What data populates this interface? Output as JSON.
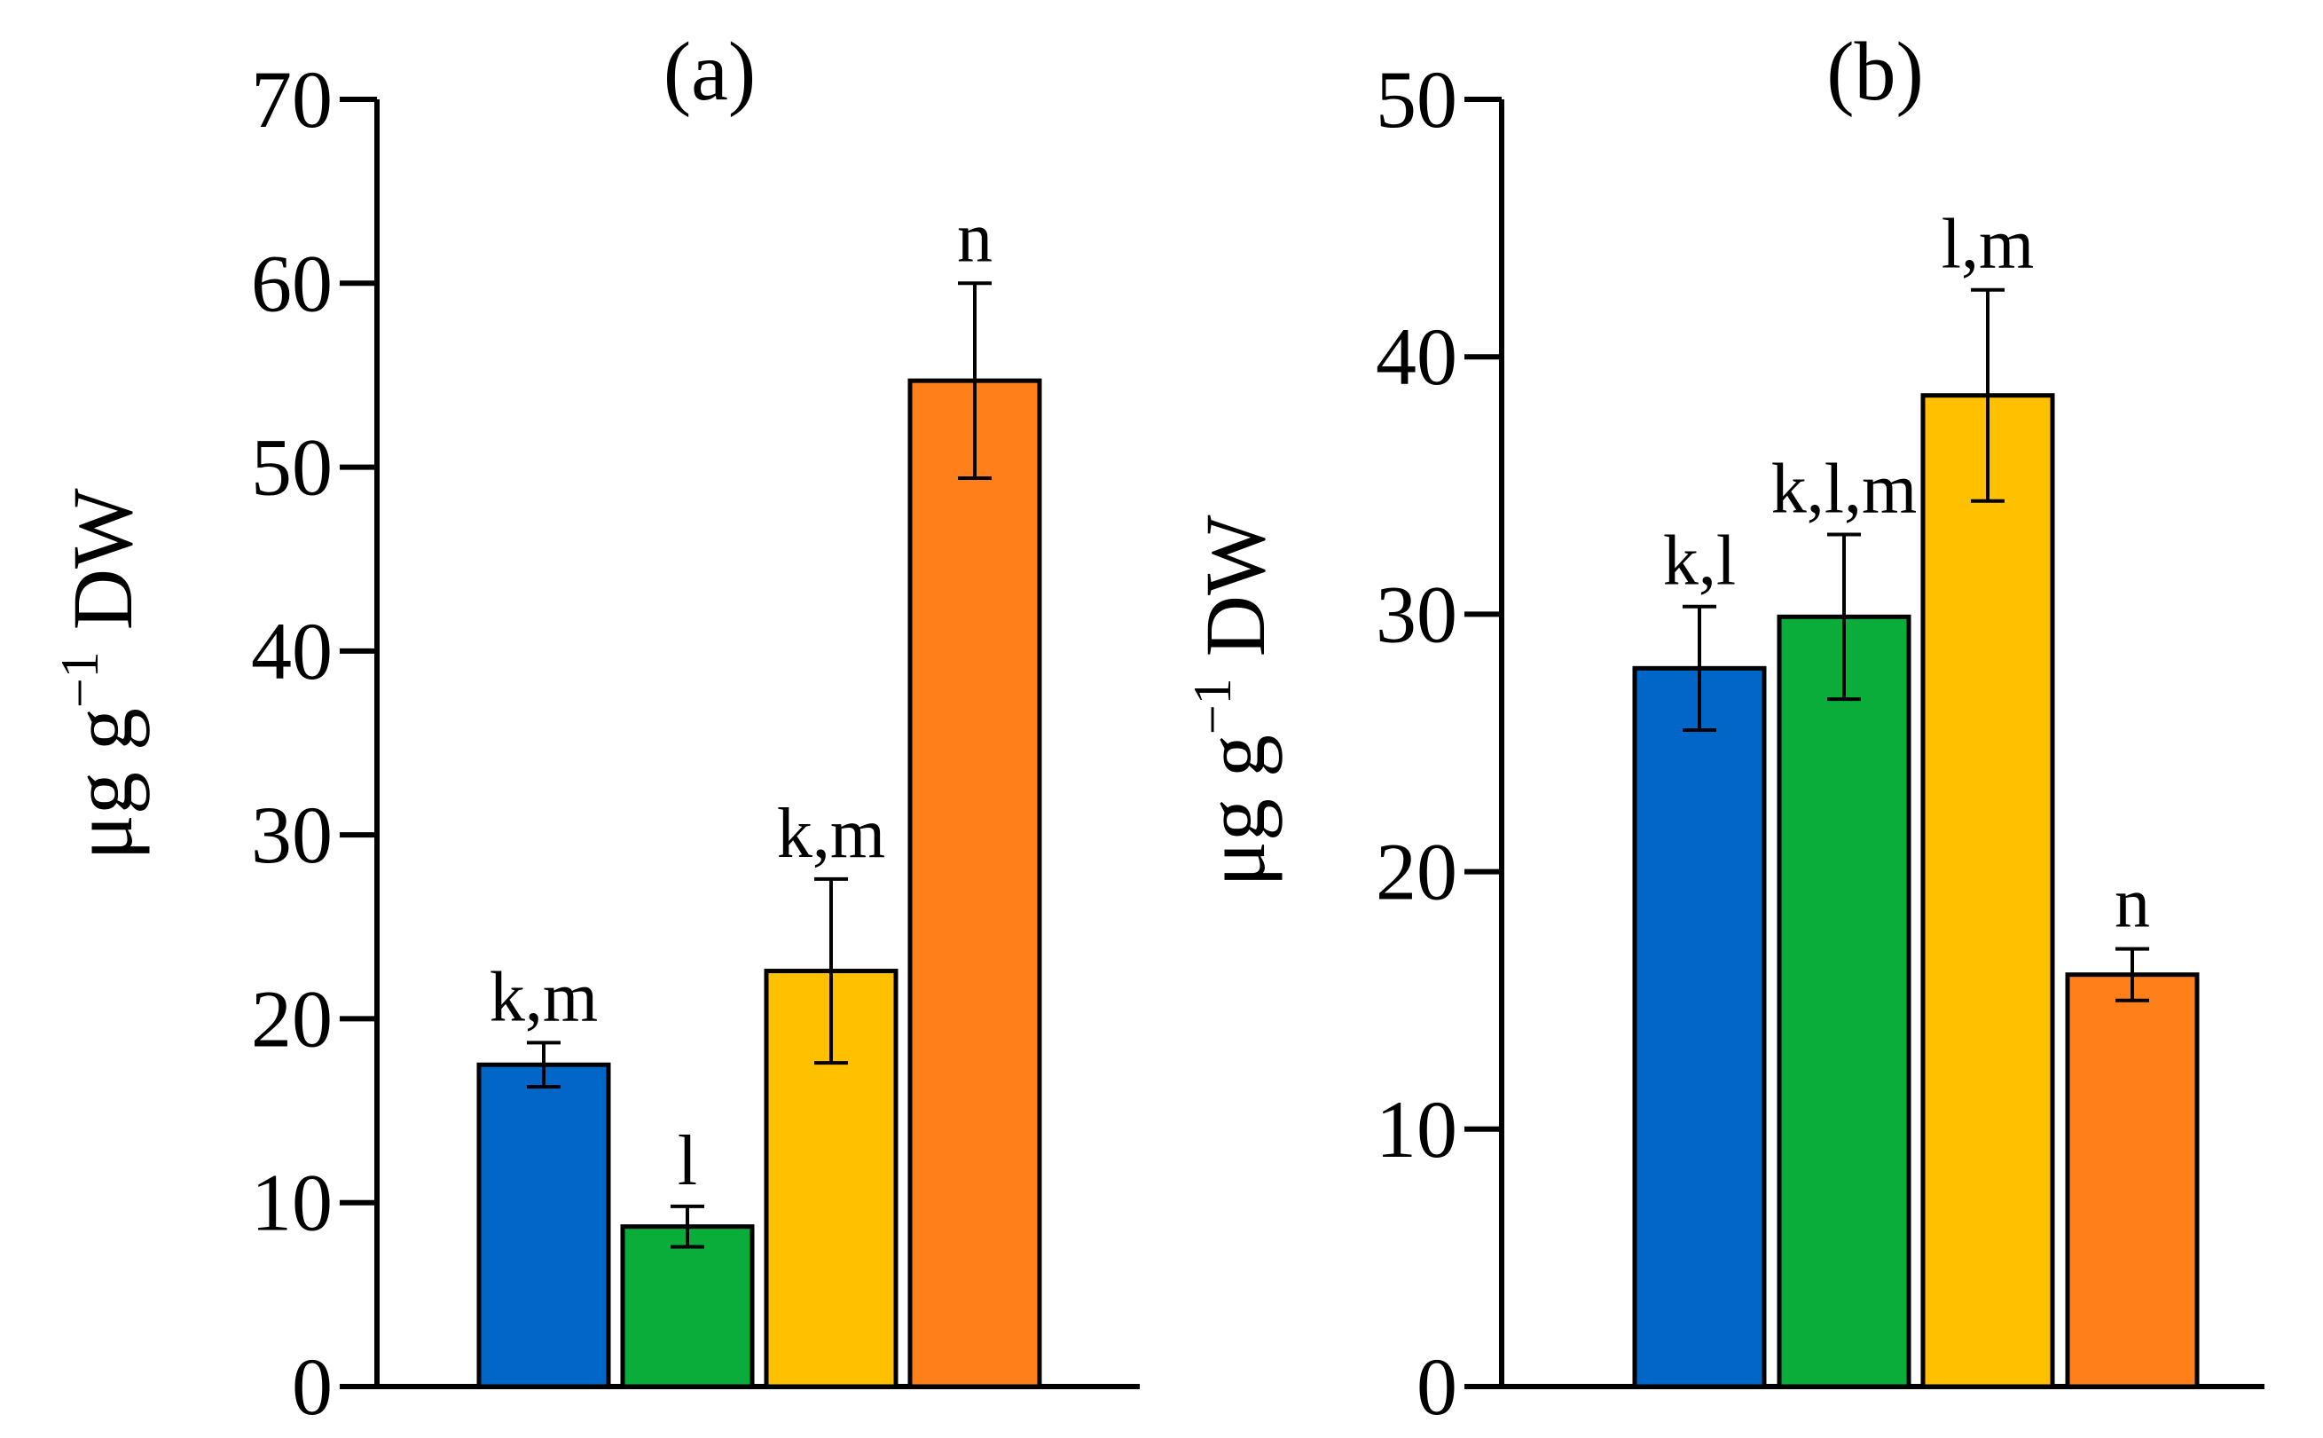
{
  "colors": [
    "#0066c8",
    "#0aad3a",
    "#ffc000",
    "#ff7f1a"
  ],
  "chart_data": [
    {
      "type": "bar",
      "title": "(a)",
      "ylabel": {
        "main": "μg g",
        "exponent": "−1",
        "unit": " DW"
      },
      "ylim": [
        0,
        70
      ],
      "yticks": [
        "0",
        "10",
        "20",
        "30",
        "40",
        "50",
        "60",
        "70"
      ],
      "series": [
        {
          "value": 17.5,
          "error": 1.2,
          "label": "k,m"
        },
        {
          "value": 8.7,
          "error": 1.1,
          "label": "l"
        },
        {
          "value": 22.6,
          "error": 5.0,
          "label": "k,m"
        },
        {
          "value": 54.7,
          "error": 5.3,
          "label": "n"
        }
      ]
    },
    {
      "type": "bar",
      "title": "(b)",
      "ylabel": {
        "main": "μg g",
        "exponent": "−1",
        "unit": " DW"
      },
      "ylim": [
        0,
        50
      ],
      "yticks": [
        "0",
        "10",
        "20",
        "30",
        "40",
        "50"
      ],
      "series": [
        {
          "value": 27.9,
          "error": 2.4,
          "label": "k,l"
        },
        {
          "value": 29.9,
          "error": 3.2,
          "label": "k,l,m"
        },
        {
          "value": 38.5,
          "error": 4.1,
          "label": "l,m"
        },
        {
          "value": 16.0,
          "error": 1.0,
          "label": "n"
        }
      ]
    }
  ]
}
